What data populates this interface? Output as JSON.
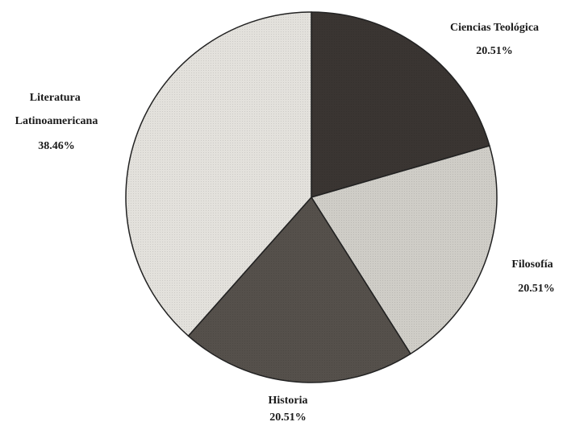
{
  "chart_data": {
    "type": "pie",
    "slices": [
      {
        "label": "Ciencias Teológica",
        "value": 20.51,
        "pct": "20.51%",
        "color": "#3a3532"
      },
      {
        "label": "Filosofía",
        "value": 20.51,
        "pct": "20.51%",
        "color": "#cfcdc7"
      },
      {
        "label": "Historia",
        "value": 20.51,
        "pct": "20.51%",
        "color": "#55504b"
      },
      {
        "label": "Literatura Latinoamericana",
        "value": 38.46,
        "pct": "38.46%",
        "color": "#e3e1dc"
      }
    ]
  }
}
